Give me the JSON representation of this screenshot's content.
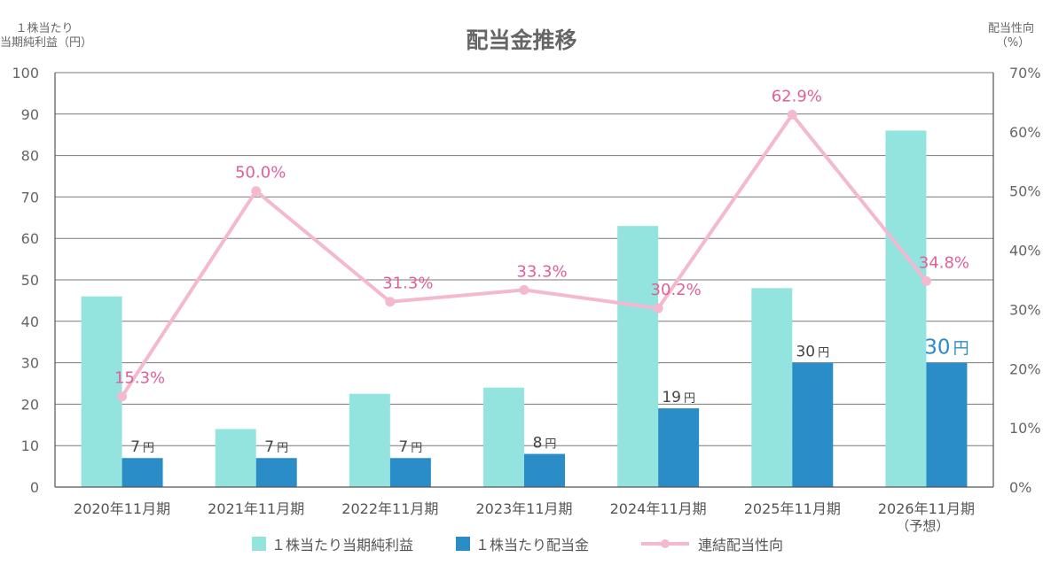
{
  "chart_data": {
    "type": "bar",
    "title": "配当金推移",
    "left_axis_label": [
      "１株当たり",
      "当期純利益（円）"
    ],
    "right_axis_label": [
      "配当性向",
      "（%）"
    ],
    "categories": [
      "2020年11月期",
      "2021年11月期",
      "2022年11月期",
      "2023年11月期",
      "2024年11月期",
      "2025年11月期",
      "2026年11月期"
    ],
    "category_sublabels": [
      "",
      "",
      "",
      "",
      "",
      "",
      "（予想）"
    ],
    "y_left": {
      "min": 0,
      "max": 100,
      "ticks": [
        "0",
        "10",
        "20",
        "30",
        "40",
        "50",
        "60",
        "70",
        "80",
        "90",
        "100"
      ]
    },
    "y_right": {
      "min": 0,
      "max": 70,
      "ticks": [
        "0%",
        "10%",
        "20%",
        "30%",
        "40%",
        "50%",
        "60%",
        "70%"
      ]
    },
    "grid": true,
    "legend_position": "bottom",
    "series": [
      {
        "name": "１株当たり当期純利益",
        "kind": "bar",
        "axis": "left",
        "color": "#93e3df",
        "values": [
          46,
          14,
          22.5,
          24,
          63,
          48,
          86
        ]
      },
      {
        "name": "１株当たり配当金",
        "kind": "bar",
        "axis": "left",
        "color": "#2a8dc8",
        "values": [
          7,
          7,
          7,
          8,
          19,
          30,
          30
        ],
        "labels": [
          {
            "num": "7",
            "unit": "円"
          },
          {
            "num": "7",
            "unit": "円"
          },
          {
            "num": "7",
            "unit": "円"
          },
          {
            "num": "8",
            "unit": "円"
          },
          {
            "num": "19",
            "unit": "円"
          },
          {
            "num": "30",
            "unit": "円"
          },
          {
            "num": "30",
            "unit": "円",
            "highlight": true
          }
        ]
      },
      {
        "name": "連結配当性向",
        "kind": "line",
        "axis": "right",
        "color": "#f4b8cf",
        "label_color": "#e0609a",
        "values": [
          15.3,
          50.0,
          31.3,
          33.3,
          30.2,
          62.9,
          34.8
        ],
        "labels": [
          "15.3%",
          "50.0%",
          "31.3%",
          "33.3%",
          "30.2%",
          "62.9%",
          "34.8%"
        ]
      }
    ]
  }
}
